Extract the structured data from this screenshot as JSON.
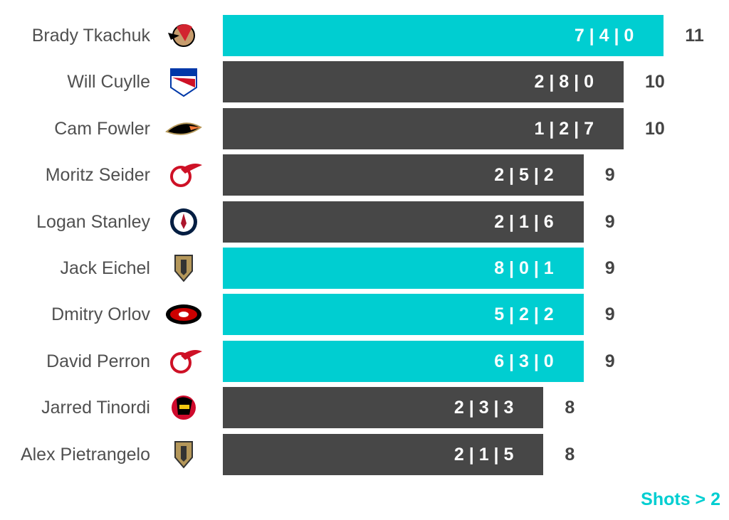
{
  "chart_data": {
    "type": "bar",
    "orientation": "horizontal",
    "xlim": [
      0,
      11
    ],
    "categories": [
      "Brady Tkachuk",
      "Will Cuylle",
      "Cam Fowler",
      "Moritz Seider",
      "Logan Stanley",
      "Jack Eichel",
      "Dmitry Orlov",
      "David Perron",
      "Jarred Tinordi",
      "Alex Pietrangelo"
    ],
    "values": [
      11,
      10,
      10,
      9,
      9,
      9,
      9,
      9,
      8,
      8
    ],
    "bar_labels": [
      "7 | 4 | 0",
      "2 | 8 | 0",
      "1 | 2 | 7",
      "2 | 5 | 2",
      "2 | 1 | 6",
      "8 | 0 | 1",
      "5 | 2 | 2",
      "6 | 3 | 0",
      "2 | 3 | 3",
      "2 | 1 | 5"
    ],
    "highlight": [
      true,
      false,
      false,
      false,
      false,
      true,
      true,
      true,
      false,
      false
    ],
    "teams": [
      "ottawa-senators",
      "new-york-rangers",
      "anaheim-ducks",
      "detroit-red-wings",
      "winnipeg-jets",
      "vegas-golden-knights",
      "carolina-hurricanes",
      "detroit-red-wings",
      "chicago-blackhawks",
      "vegas-golden-knights"
    ],
    "legend": "Shots > 2",
    "colors": {
      "highlight": "#00CED1",
      "default": "#474747"
    }
  }
}
